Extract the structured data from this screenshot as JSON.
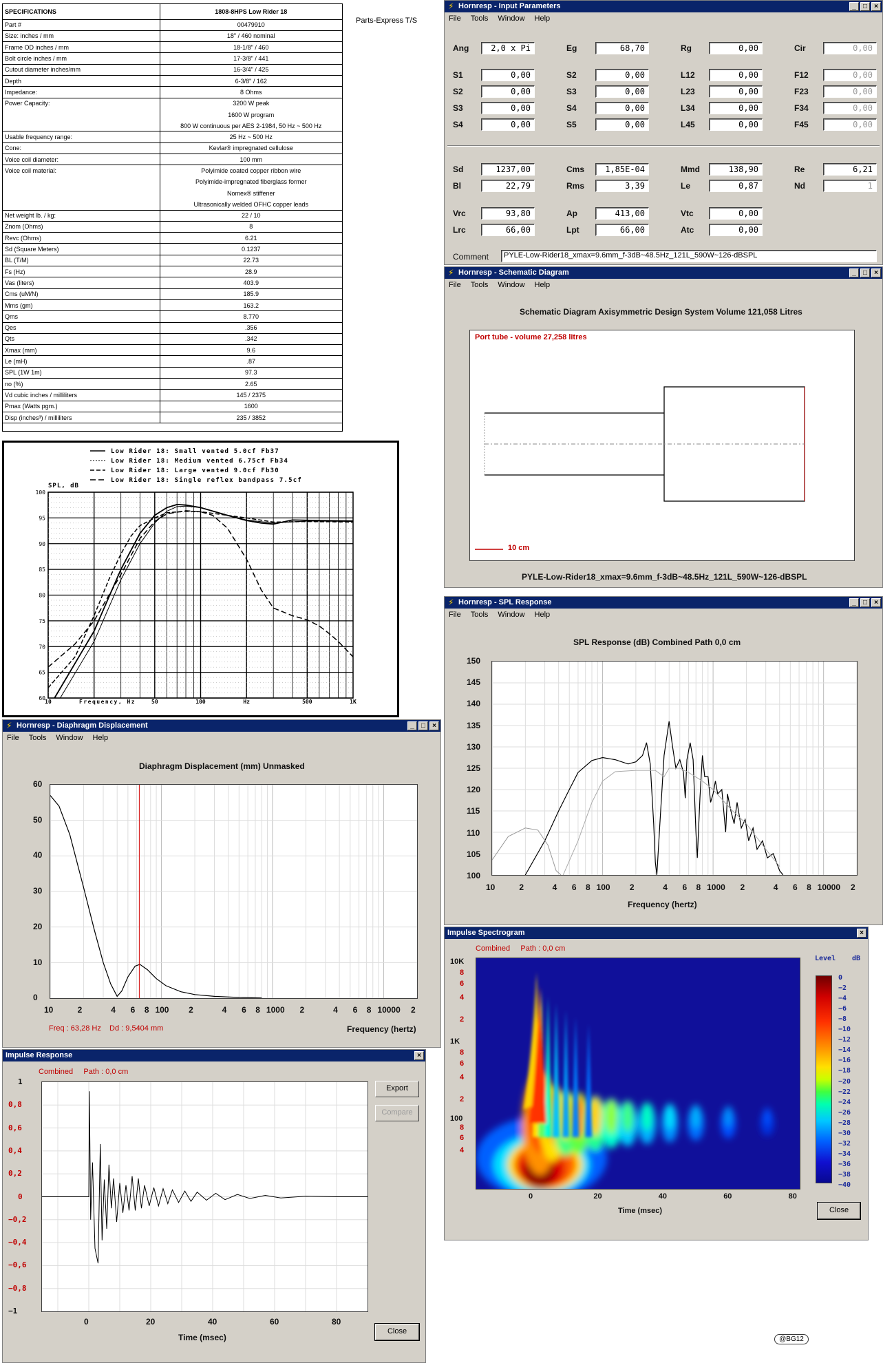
{
  "spec_sheet": {
    "source_label": "Parts-Express T/S",
    "header": {
      "param": "SPECIFICATIONS",
      "value": "1808-8HPS Low Rider 18"
    },
    "rows": [
      {
        "param": "Part #",
        "value": "00479910"
      },
      {
        "param": "Size: inches / mm",
        "value": "18\" / 460 nominal"
      },
      {
        "param": "Frame OD inches / mm",
        "value": "18-1/8\" / 460"
      },
      {
        "param": "Bolt circle inches / mm",
        "value": "17-3/8\" / 441"
      },
      {
        "param": "Cutout diameter inches/mm",
        "value": "16-3/4\" / 425"
      },
      {
        "param": "Depth",
        "value": "6-3/8\" / 162"
      },
      {
        "param": "Impedance:",
        "value": "8 Ohms"
      },
      {
        "param": "Power Capacity:",
        "values": [
          "3200 W peak",
          "1600 W program",
          "800 W continuous per AES 2-1984, 50 Hz ~ 500 Hz"
        ]
      },
      {
        "param": "Usable frequency range:",
        "value": "25 Hz ~ 500 Hz"
      },
      {
        "param": "Cone:",
        "value": "Kevlar® impregnated cellulose"
      },
      {
        "param": "Voice coil diameter:",
        "value": "100 mm"
      },
      {
        "param": "Voice coil material:",
        "values": [
          "Polyimide coated copper ribbon wire",
          "Polyimide-impregnated fiberglass former",
          "Nomex® stiffener",
          "Ultrasonically welded OFHC copper leads"
        ]
      },
      {
        "param": "Net weight lb. / kg:",
        "value": "22 / 10"
      },
      {
        "param": "Znom (Ohms)",
        "value": "8"
      },
      {
        "param": "Revc (Ohms)",
        "value": "6.21"
      },
      {
        "param": "Sd (Square Meters)",
        "value": "0.1237"
      },
      {
        "param": "BL (T/M)",
        "value": "22.73"
      },
      {
        "param": "Fs (Hz)",
        "value": "28.9"
      },
      {
        "param": "Vas (liters)",
        "value": "403.9"
      },
      {
        "param": "Cms (uM/N)",
        "value": "185.9"
      },
      {
        "param": "Mms (gm)",
        "value": "163.2"
      },
      {
        "param": "Qms",
        "value": "8.770"
      },
      {
        "param": "Qes",
        "value": ".356"
      },
      {
        "param": "Qts",
        "value": ".342"
      },
      {
        "param": "Xmax (mm)",
        "value": "9.6"
      },
      {
        "param": "Le (mH)",
        "value": ".87"
      },
      {
        "param": "SPL (1W 1m)",
        "value": "97.3"
      },
      {
        "param": "no (%)",
        "value": "2.65"
      },
      {
        "param": "Vd cubic inches / milliliters",
        "value": "145 / 2375"
      },
      {
        "param": "Pmax (Watts pgm.)",
        "value": "1600"
      },
      {
        "param": "Disp (inches³) / milliliters",
        "value": "235 / 3852"
      }
    ]
  },
  "compare_chart": {
    "legend": [
      "Low Rider 18: Small vented 5.0cf Fb37",
      "Low Rider 18: Medium vented 6.75cf Fb34",
      "Low Rider 18: Large vented 9.0cf Fb30",
      "Low Rider 18: Single reflex bandpass 7.5cf"
    ],
    "ylabel": "SPL, dB",
    "xlabel": "Frequency, Hz",
    "x_unit": "Hz",
    "y_ticks": [
      "100",
      "95",
      "90",
      "85",
      "80",
      "75",
      "70",
      "65",
      "60"
    ],
    "x_ticks": [
      "10",
      "50",
      "100",
      "500",
      "1K"
    ]
  },
  "input_params": {
    "title": "Hornresp - Input Parameters",
    "menu": [
      "File",
      "Tools",
      "Window",
      "Help"
    ],
    "fields": {
      "Ang": "2,0 x Pi",
      "Eg": "68,70",
      "Rg": "0,00",
      "Cir": "0,00",
      "S1": "0,00",
      "S2b": "0,00",
      "L12": "0,00",
      "F12": "0,00",
      "S2": "0,00",
      "S3b": "0,00",
      "L23": "0,00",
      "F23": "0,00",
      "S3": "0,00",
      "S4b": "0,00",
      "L34": "0,00",
      "F34": "0,00",
      "S4": "0,00",
      "S5": "0,00",
      "L45": "0,00",
      "F45": "0,00",
      "Sd": "1237,00",
      "Cms": "1,85E-04",
      "Mmd": "138,90",
      "Re": "6,21",
      "Bl": "22,79",
      "Rms": "3,39",
      "Le": "0,87",
      "Nd": "1",
      "Vrc": "93,80",
      "Ap": "413,00",
      "Vtc": "0,00",
      "Lrc": "66,00",
      "Lpt": "66,00",
      "Atc": "0,00"
    },
    "labels": {
      "Ang": "Ang",
      "Eg": "Eg",
      "Rg": "Rg",
      "Cir": "Cir",
      "S1": "S1",
      "S2": "S2",
      "S3": "S3",
      "S4": "S4",
      "S5": "S5",
      "L12": "L12",
      "L23": "L23",
      "L34": "L34",
      "L45": "L45",
      "F12": "F12",
      "F23": "F23",
      "F34": "F34",
      "F45": "F45",
      "Sd": "Sd",
      "Bl": "Bl",
      "Cms": "Cms",
      "Rms": "Rms",
      "Mmd": "Mmd",
      "Le": "Le",
      "Re": "Re",
      "Nd": "Nd",
      "Vrc": "Vrc",
      "Lrc": "Lrc",
      "Ap": "Ap",
      "Lpt": "Lpt",
      "Vtc": "Vtc",
      "Atc": "Atc",
      "Comment": "Comment"
    },
    "comment": "PYLE-Low-Rider18_xmax=9.6mm_f-3dB~48.5Hz_121L_590W~126-dBSPL"
  },
  "schematic": {
    "title": "Hornresp - Schematic Diagram",
    "menu": [
      "File",
      "Tools",
      "Window",
      "Help"
    ],
    "heading": "Schematic Diagram   Axisymmetric Design   System Volume 121,058 Litres",
    "port_label": "Port tube - volume 27,258 litres",
    "scale_label": "10 cm",
    "footer": "PYLE-Low-Rider18_xmax=9.6mm_f-3dB~48.5Hz_121L_590W~126-dBSPL"
  },
  "spl": {
    "title": "Hornresp - SPL Response",
    "menu": [
      "File",
      "Tools",
      "Window",
      "Help"
    ],
    "heading": "SPL Response (dB)    Combined    Path 0,0 cm",
    "y_ticks": [
      "150",
      "145",
      "140",
      "135",
      "130",
      "125",
      "120",
      "115",
      "110",
      "105",
      "100"
    ],
    "x_ticks": [
      "10",
      "2",
      "4",
      "6",
      "8",
      "100",
      "2",
      "4",
      "6",
      "8",
      "1000",
      "2",
      "4",
      "6",
      "8",
      "10000",
      "2"
    ],
    "xlabel": "Frequency (hertz)"
  },
  "displacement": {
    "title": "Hornresp - Diaphragm Displacement",
    "menu": [
      "File",
      "Tools",
      "Window",
      "Help"
    ],
    "heading": "Diaphragm Displacement (mm)    Unmasked",
    "y_ticks": [
      "60",
      "50",
      "40",
      "30",
      "20",
      "10",
      "0"
    ],
    "x_ticks": [
      "10",
      "2",
      "4",
      "6",
      "8",
      "100",
      "2",
      "4",
      "6",
      "8",
      "1000",
      "2",
      "4",
      "6",
      "8",
      "10000",
      "2"
    ],
    "readout": "Freq : 63,28 Hz    Dd : 9,5404 mm",
    "xlabel": "Frequency (hertz)"
  },
  "impulse": {
    "title": "Impulse Response",
    "subtitle": "Combined     Path : 0,0 cm",
    "y_ticks": [
      "1",
      "0,8",
      "0,6",
      "0,4",
      "0,2",
      "0",
      "−0,2",
      "−0,4",
      "−0,6",
      "−0,8",
      "−1"
    ],
    "x_ticks": [
      "0",
      "20",
      "40",
      "60",
      "80"
    ],
    "xlabel": "Time (msec)",
    "buttons": {
      "export": "Export",
      "compare": "Compare",
      "close": "Close"
    }
  },
  "spectrogram": {
    "title": "Impulse Spectrogram",
    "subtitle": "Combined     Path : 0,0 cm",
    "y_ticks": [
      "10K",
      "8",
      "6",
      "4",
      "2",
      "1K",
      "8",
      "6",
      "4",
      "2",
      "100",
      "8",
      "6",
      "4"
    ],
    "x_ticks": [
      "0",
      "20",
      "40",
      "60",
      "80"
    ],
    "xlabel": "Time (msec)",
    "level_label": "Level",
    "level_unit": "dB",
    "scale": [
      "0",
      "−2",
      "−4",
      "−6",
      "−8",
      "−10",
      "−12",
      "−14",
      "−16",
      "−18",
      "−20",
      "−22",
      "−24",
      "−26",
      "−28",
      "−30",
      "−32",
      "−34",
      "−36",
      "−38",
      "−40"
    ],
    "close": "Close"
  },
  "credit": "@BG12"
}
